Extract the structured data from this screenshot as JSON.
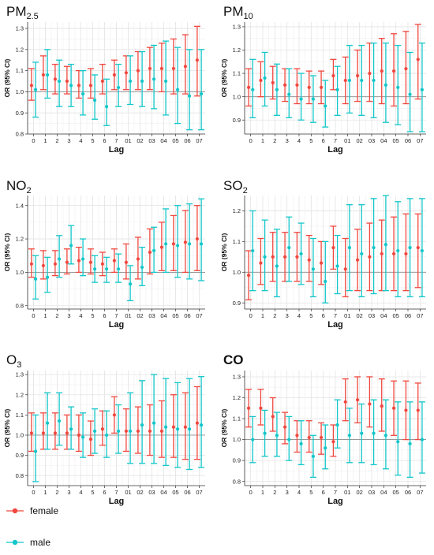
{
  "legend": [
    {
      "label": "female",
      "color": "#f0473e"
    },
    {
      "label": "male",
      "color": "#12c6c9"
    }
  ],
  "chart_data": [
    {
      "type": "scatter",
      "title_main": "PM",
      "title_sub": "2.5",
      "xlabel": "Lag",
      "ylabel": "OR (95% CI)",
      "categories": [
        "0",
        "1",
        "2",
        "3",
        "4",
        "5",
        "6",
        "7",
        "01",
        "02",
        "03",
        "04",
        "05",
        "06",
        "07"
      ],
      "ylim": [
        0.8,
        1.33
      ],
      "yticks": [
        0.8,
        0.9,
        1.0,
        1.1,
        1.2,
        1.3
      ],
      "ytick_labels": [
        "0.8",
        "0.9",
        "1.0",
        "1.1",
        "1.2",
        "1.3"
      ],
      "reference_line": 1.0,
      "series": [
        {
          "name": "female",
          "color": "#f0473e",
          "est": [
            1.03,
            1.08,
            1.06,
            1.05,
            1.03,
            1.03,
            1.05,
            1.08,
            1.09,
            1.1,
            1.11,
            1.11,
            1.11,
            1.12,
            1.15
          ],
          "lower": [
            0.96,
            1.01,
            0.99,
            0.99,
            0.97,
            0.97,
            0.99,
            1.01,
            1.01,
            1.01,
            1.01,
            1.0,
            0.99,
            0.99,
            0.98
          ],
          "upper": [
            1.11,
            1.17,
            1.13,
            1.12,
            1.1,
            1.11,
            1.13,
            1.15,
            1.17,
            1.19,
            1.21,
            1.23,
            1.25,
            1.27,
            1.31
          ]
        },
        {
          "name": "male",
          "color": "#12c6c9",
          "est": [
            1.01,
            1.08,
            1.05,
            1.03,
            0.99,
            0.96,
            0.93,
            1.02,
            1.05,
            1.05,
            1.06,
            1.05,
            1.01,
            0.98,
            0.99
          ],
          "lower": [
            0.88,
            0.97,
            0.93,
            0.93,
            0.89,
            0.87,
            0.84,
            0.93,
            0.94,
            0.93,
            0.92,
            0.89,
            0.85,
            0.82,
            0.82
          ],
          "upper": [
            1.14,
            1.2,
            1.15,
            1.13,
            1.1,
            1.08,
            1.06,
            1.13,
            1.17,
            1.19,
            1.22,
            1.24,
            1.21,
            1.2,
            1.2
          ]
        }
      ]
    },
    {
      "type": "scatter",
      "title_main": "PM",
      "title_sub": "10",
      "xlabel": "Lag",
      "ylabel": "OR (95% CI)",
      "categories": [
        "0",
        "1",
        "2",
        "3",
        "4",
        "5",
        "6",
        "7",
        "01",
        "02",
        "03",
        "04",
        "05",
        "06",
        "07"
      ],
      "ylim": [
        0.84,
        1.32
      ],
      "yticks": [
        0.9,
        1.0,
        1.1,
        1.2,
        1.3
      ],
      "ytick_labels": [
        "0.9",
        "1.0",
        "1.1",
        "1.2",
        "1.3"
      ],
      "reference_line": 1.0,
      "series": [
        {
          "name": "female",
          "color": "#f0473e",
          "est": [
            1.04,
            1.07,
            1.06,
            1.05,
            1.05,
            1.04,
            1.04,
            1.09,
            1.07,
            1.09,
            1.1,
            1.11,
            1.11,
            1.12,
            1.16
          ],
          "lower": [
            0.96,
            1.0,
            0.99,
            0.98,
            0.97,
            0.97,
            0.97,
            1.03,
            0.97,
            0.98,
            0.98,
            0.97,
            0.96,
            0.97,
            0.99
          ],
          "upper": [
            1.12,
            1.15,
            1.13,
            1.12,
            1.12,
            1.11,
            1.11,
            1.16,
            1.17,
            1.2,
            1.23,
            1.25,
            1.27,
            1.28,
            1.31
          ]
        },
        {
          "name": "male",
          "color": "#12c6c9",
          "est": [
            1.03,
            1.08,
            1.03,
            1.01,
            0.99,
            0.99,
            0.96,
            1.03,
            1.07,
            1.07,
            1.07,
            1.05,
            1.04,
            1.01,
            1.03
          ],
          "lower": [
            0.91,
            0.96,
            0.92,
            0.91,
            0.9,
            0.89,
            0.87,
            0.92,
            0.93,
            0.92,
            0.91,
            0.89,
            0.88,
            0.85,
            0.85
          ],
          "upper": [
            1.16,
            1.19,
            1.14,
            1.12,
            1.1,
            1.09,
            1.07,
            1.13,
            1.22,
            1.22,
            1.23,
            1.23,
            1.22,
            1.19,
            1.23
          ]
        }
      ]
    },
    {
      "type": "scatter",
      "title_main": "NO",
      "title_sub": "2",
      "xlabel": "Lag",
      "ylabel": "OR (95% CI)",
      "categories": [
        "0",
        "1",
        "2",
        "3",
        "4",
        "5",
        "6",
        "7",
        "01",
        "02",
        "03",
        "04",
        "05",
        "06",
        "07"
      ],
      "ylim": [
        0.78,
        1.46
      ],
      "yticks": [
        0.8,
        1.0,
        1.2,
        1.4
      ],
      "ytick_labels": [
        "0.8",
        "1.0",
        "1.2",
        "1.4"
      ],
      "reference_line": 1.0,
      "series": [
        {
          "name": "female",
          "color": "#f0473e",
          "est": [
            1.05,
            1.04,
            1.05,
            1.06,
            1.07,
            1.06,
            1.05,
            1.07,
            1.06,
            1.08,
            1.12,
            1.15,
            1.17,
            1.18,
            1.2
          ],
          "lower": [
            0.97,
            0.96,
            0.98,
            0.99,
            1.0,
            0.99,
            0.98,
            1.0,
            0.96,
            0.96,
            0.99,
            1.01,
            1.01,
            1.0,
            1.01
          ],
          "upper": [
            1.14,
            1.13,
            1.13,
            1.14,
            1.15,
            1.14,
            1.12,
            1.14,
            1.17,
            1.21,
            1.26,
            1.3,
            1.34,
            1.37,
            1.4
          ]
        },
        {
          "name": "male",
          "color": "#12c6c9",
          "est": [
            0.96,
            0.97,
            1.08,
            1.16,
            1.08,
            1.02,
            1.02,
            1.02,
            0.93,
            1.03,
            1.13,
            1.17,
            1.16,
            1.17,
            1.17
          ],
          "lower": [
            0.84,
            0.88,
            0.97,
            1.05,
            0.98,
            0.94,
            0.94,
            0.94,
            0.83,
            0.92,
            1.0,
            1.0,
            0.97,
            0.96,
            0.95
          ],
          "upper": [
            1.1,
            1.09,
            1.22,
            1.28,
            1.2,
            1.1,
            1.09,
            1.11,
            1.04,
            1.15,
            1.27,
            1.38,
            1.4,
            1.41,
            1.44
          ]
        }
      ]
    },
    {
      "type": "scatter",
      "title_main": "SO",
      "title_sub": "2",
      "xlabel": "Lag",
      "ylabel": "OR (95% CI)",
      "categories": [
        "0",
        "1",
        "2",
        "3",
        "4",
        "5",
        "6",
        "7",
        "01",
        "02",
        "03",
        "04",
        "05",
        "06",
        "07"
      ],
      "ylim": [
        0.88,
        1.25
      ],
      "yticks": [
        0.9,
        1.0,
        1.1,
        1.2
      ],
      "ytick_labels": [
        "0.9",
        "1.0",
        "1.1",
        "1.2"
      ],
      "reference_line": 1.0,
      "series": [
        {
          "name": "female",
          "color": "#f0473e",
          "est": [
            0.99,
            1.03,
            1.05,
            1.05,
            1.05,
            1.04,
            1.03,
            1.08,
            1.01,
            1.04,
            1.05,
            1.06,
            1.06,
            1.06,
            1.08
          ],
          "lower": [
            0.91,
            0.96,
            0.97,
            0.97,
            0.97,
            0.97,
            0.96,
            1.01,
            0.92,
            0.94,
            0.94,
            0.94,
            0.94,
            0.94,
            0.95
          ],
          "upper": [
            1.07,
            1.11,
            1.13,
            1.13,
            1.13,
            1.12,
            1.1,
            1.15,
            1.11,
            1.14,
            1.16,
            1.17,
            1.18,
            1.19,
            1.19
          ]
        },
        {
          "name": "male",
          "color": "#12c6c9",
          "est": [
            1.07,
            1.05,
            1.02,
            1.08,
            1.06,
            1.01,
            0.97,
            1.02,
            1.08,
            1.06,
            1.08,
            1.09,
            1.07,
            1.08,
            1.07
          ],
          "lower": [
            0.94,
            0.94,
            0.92,
            0.97,
            0.96,
            0.92,
            0.9,
            0.93,
            0.94,
            0.92,
            0.93,
            0.94,
            0.92,
            0.92,
            0.92
          ],
          "upper": [
            1.2,
            1.17,
            1.14,
            1.18,
            1.16,
            1.11,
            1.1,
            1.12,
            1.22,
            1.22,
            1.24,
            1.25,
            1.23,
            1.24,
            1.24
          ]
        }
      ]
    },
    {
      "type": "scatter",
      "title_main": "O",
      "title_sub": "3",
      "xlabel": "Lag",
      "ylabel": "OR (95% CI)",
      "categories": [
        "0",
        "1",
        "2",
        "3",
        "4",
        "5",
        "6",
        "7",
        "01",
        "02",
        "03",
        "04",
        "05",
        "06",
        "07"
      ],
      "ylim": [
        0.75,
        1.32
      ],
      "yticks": [
        0.8,
        0.9,
        1.0,
        1.1,
        1.2,
        1.3
      ],
      "ytick_labels": [
        "0.8",
        "0.9",
        "1.0",
        "1.1",
        "1.2",
        "1.3"
      ],
      "reference_line": 1.0,
      "series": [
        {
          "name": "female",
          "color": "#f0473e",
          "est": [
            1.01,
            1.01,
            1.01,
            1.01,
            1.0,
            0.98,
            1.03,
            1.1,
            1.02,
            1.02,
            1.02,
            1.02,
            1.04,
            1.04,
            1.06
          ],
          "lower": [
            0.92,
            0.93,
            0.93,
            0.93,
            0.92,
            0.9,
            0.95,
            1.01,
            0.92,
            0.91,
            0.9,
            0.89,
            0.89,
            0.88,
            0.88
          ],
          "upper": [
            1.11,
            1.11,
            1.11,
            1.1,
            1.1,
            1.07,
            1.12,
            1.19,
            1.13,
            1.14,
            1.15,
            1.17,
            1.2,
            1.21,
            1.24
          ]
        },
        {
          "name": "male",
          "color": "#12c6c9",
          "est": [
            0.92,
            1.06,
            1.07,
            1.03,
            0.99,
            1.02,
            1.0,
            1.02,
            1.02,
            1.05,
            1.06,
            1.04,
            1.03,
            1.03,
            1.05
          ],
          "lower": [
            0.77,
            0.93,
            0.95,
            0.93,
            0.89,
            0.91,
            0.89,
            0.91,
            0.86,
            0.86,
            0.86,
            0.85,
            0.84,
            0.83,
            0.84
          ],
          "upper": [
            1.1,
            1.21,
            1.21,
            1.14,
            1.11,
            1.13,
            1.12,
            1.15,
            1.21,
            1.27,
            1.3,
            1.28,
            1.26,
            1.28,
            1.29
          ]
        }
      ]
    },
    {
      "type": "scatter",
      "title_main": "CO",
      "title_sub": "",
      "title_bold": true,
      "xlabel": "Lag",
      "ylabel": "OR (95% CI)",
      "categories": [
        "0",
        "1",
        "2",
        "3",
        "4",
        "5",
        "6",
        "7",
        "01",
        "02",
        "03",
        "04",
        "05",
        "06",
        "07"
      ],
      "ylim": [
        0.78,
        1.33
      ],
      "yticks": [
        0.8,
        0.9,
        1.0,
        1.1,
        1.2,
        1.3
      ],
      "ytick_labels": [
        "0.8",
        "0.9",
        "1.0",
        "1.1",
        "1.2",
        "1.3"
      ],
      "reference_line": 1.0,
      "series": [
        {
          "name": "female",
          "color": "#f0473e",
          "est": [
            1.15,
            1.15,
            1.11,
            1.06,
            1.02,
            1.01,
            1.01,
            0.99,
            1.18,
            1.19,
            1.17,
            1.16,
            1.15,
            1.14,
            1.14
          ],
          "lower": [
            1.06,
            1.07,
            1.04,
            0.98,
            0.94,
            0.94,
            0.93,
            0.92,
            1.09,
            1.08,
            1.06,
            1.04,
            1.02,
            1.0,
            1.0
          ],
          "upper": [
            1.24,
            1.24,
            1.2,
            1.13,
            1.09,
            1.09,
            1.08,
            1.07,
            1.29,
            1.3,
            1.3,
            1.29,
            1.28,
            1.28,
            1.27
          ]
        },
        {
          "name": "male",
          "color": "#12c6c9",
          "est": [
            1.0,
            1.03,
            1.02,
            1.0,
            0.98,
            0.92,
            0.96,
            1.07,
            1.02,
            1.03,
            1.03,
            1.02,
            0.99,
            0.98,
            1.0
          ],
          "lower": [
            0.89,
            0.92,
            0.92,
            0.9,
            0.88,
            0.82,
            0.86,
            0.96,
            0.89,
            0.89,
            0.88,
            0.86,
            0.83,
            0.82,
            0.84
          ],
          "upper": [
            1.11,
            1.14,
            1.13,
            1.11,
            1.09,
            1.02,
            1.07,
            1.19,
            1.15,
            1.17,
            1.19,
            1.19,
            1.18,
            1.18,
            1.18
          ]
        }
      ]
    }
  ]
}
